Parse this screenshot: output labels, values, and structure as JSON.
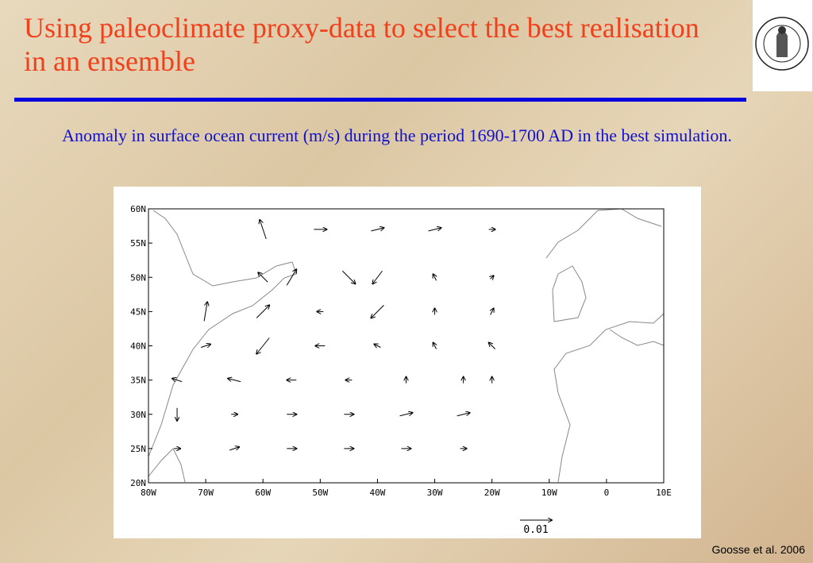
{
  "header": {
    "title": "Using paleoclimate proxy-data to select the best realisation in an ensemble"
  },
  "caption": "Anomaly in surface ocean current (m/s) during the period 1690-1700 AD in the best simulation.",
  "map": {
    "xlim": [
      -80,
      10
    ],
    "ylim": [
      20,
      60
    ],
    "xticks": [
      {
        "value": -80,
        "label": "80W"
      },
      {
        "value": -70,
        "label": "70W"
      },
      {
        "value": -60,
        "label": "60W"
      },
      {
        "value": -50,
        "label": "50W"
      },
      {
        "value": -40,
        "label": "40W"
      },
      {
        "value": -30,
        "label": "30W"
      },
      {
        "value": -20,
        "label": "20W"
      },
      {
        "value": -10,
        "label": "10W"
      },
      0,
      {
        "value": 10,
        "label": "10E"
      }
    ],
    "yticks": [
      {
        "value": 20,
        "label": "20N"
      },
      {
        "value": 25,
        "label": "25N"
      },
      {
        "value": 30,
        "label": "30N"
      },
      {
        "value": 35,
        "label": "35N"
      },
      {
        "value": 40,
        "label": "40N"
      },
      {
        "value": 45,
        "label": "45N"
      },
      {
        "value": 50,
        "label": "50N"
      },
      {
        "value": 55,
        "label": "55N"
      },
      {
        "value": 60,
        "label": "60N"
      }
    ],
    "vectors": {
      "lon": [
        -60,
        -50,
        -40,
        -30,
        -20,
        -60,
        -55,
        -45,
        -40,
        -30,
        -20,
        -70,
        -60,
        -50,
        -40,
        -30,
        -20,
        -70,
        -60,
        -50,
        -40,
        -30,
        -20,
        -75,
        -65,
        -55,
        -45,
        -35,
        -25,
        -20,
        -75,
        -65,
        -55,
        -45,
        -35,
        -25,
        -75,
        -65,
        -55,
        -45,
        -35,
        -25
      ],
      "lat": [
        57,
        57,
        57,
        57,
        57,
        50,
        50,
        50,
        50,
        50,
        50,
        45,
        45,
        45,
        45,
        45,
        45,
        40,
        40,
        40,
        40,
        40,
        40,
        35,
        35,
        35,
        35,
        35,
        35,
        35,
        30,
        30,
        30,
        30,
        30,
        30,
        25,
        25,
        25,
        25,
        25,
        25
      ],
      "u": [
        -0.002,
        0.004,
        0.004,
        0.004,
        0.002,
        -0.003,
        0.003,
        0.004,
        -0.003,
        -0.001,
        0.001,
        0.001,
        0.004,
        -0.002,
        -0.004,
        0,
        0.001,
        0.003,
        -0.004,
        -0.003,
        -0.002,
        -0.001,
        -0.002,
        -0.003,
        -0.004,
        -0.003,
        -0.002,
        0,
        0,
        0,
        0,
        0.002,
        0.003,
        0.003,
        0.004,
        0.004,
        0.002,
        0.003,
        0.003,
        0.003,
        0.003,
        0.002
      ],
      "v": [
        0.006,
        0,
        0.001,
        0.001,
        0,
        0.003,
        0.005,
        -0.004,
        -0.004,
        0.002,
        0.001,
        0.006,
        0.004,
        0,
        -0.004,
        0.002,
        0.002,
        0.001,
        -0.005,
        0,
        0.001,
        0.002,
        0.002,
        0.001,
        0.001,
        0,
        0,
        0.002,
        0.002,
        0.002,
        -0.004,
        0,
        0,
        0,
        0.001,
        0.001,
        0,
        0.001,
        0,
        0,
        0,
        0
      ]
    },
    "scale": 0.01
  },
  "credit": "Goosse et al. 2006"
}
